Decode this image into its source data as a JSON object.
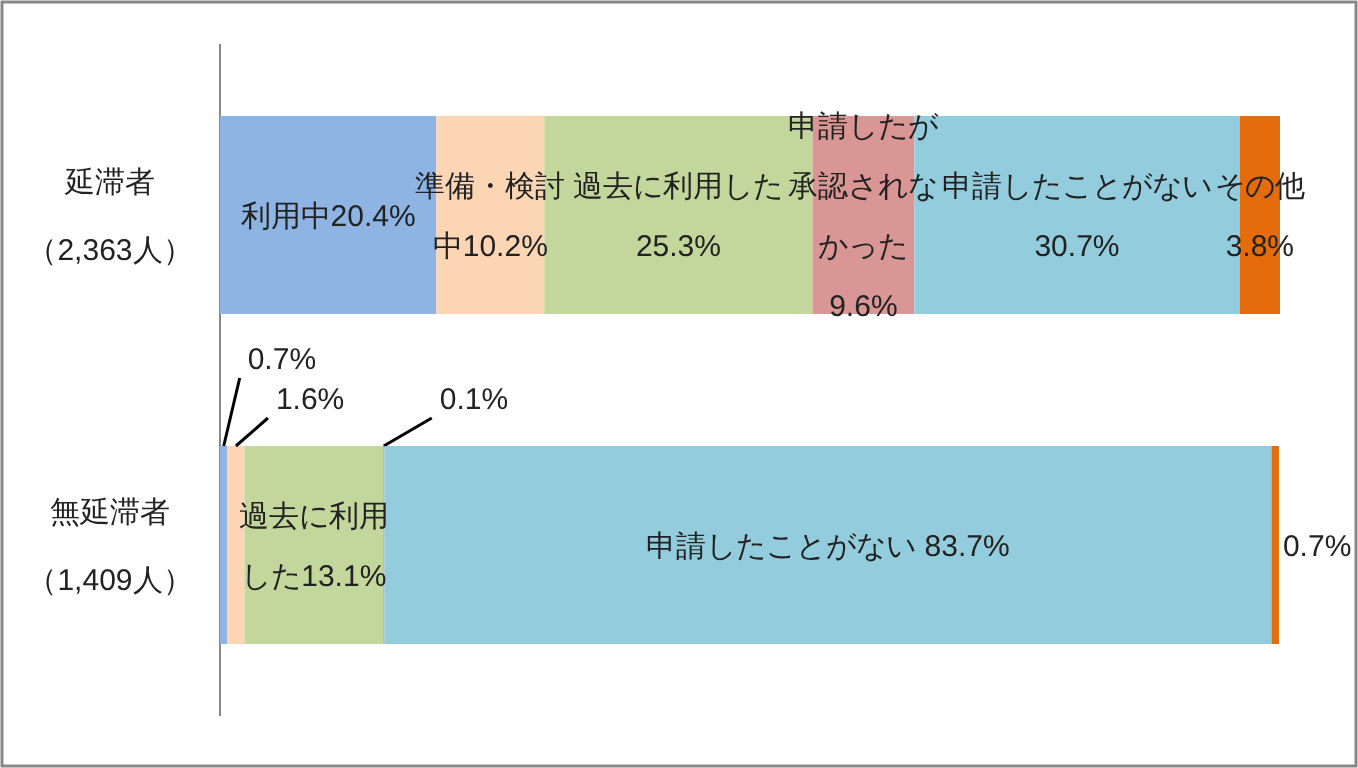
{
  "chart_data": {
    "type": "bar",
    "orientation": "horizontal",
    "stacked": true,
    "categories": [
      "延滞者（2,363人）",
      "無延滞者（1,409人）"
    ],
    "series": [
      {
        "color": "#8eb4e3",
        "values": [
          20.4,
          0.7
        ],
        "value_labels": [
          "利用中20.4%",
          "0.7%"
        ]
      },
      {
        "color": "#fcd5b5",
        "values": [
          10.2,
          1.6
        ],
        "value_labels": [
          "準備・検討中10.2%",
          "1.6%"
        ]
      },
      {
        "color": "#c3d69b",
        "values": [
          25.3,
          13.1
        ],
        "value_labels": [
          "過去に利用した25.3%",
          "過去に利用した13.1%"
        ]
      },
      {
        "color": "#d99694",
        "values": [
          9.6,
          0.1
        ],
        "value_labels": [
          "申請したが承認されなかった9.6%",
          "0.1%"
        ]
      },
      {
        "color": "#93cddd",
        "values": [
          30.7,
          83.7
        ],
        "value_labels": [
          "申請したことがない 30.7%",
          "申請したことがない 83.7%"
        ]
      },
      {
        "color": "#e46c0a",
        "values": [
          3.8,
          0.7
        ],
        "value_labels": [
          "その他3.8%",
          "0.7%"
        ]
      }
    ]
  }
}
